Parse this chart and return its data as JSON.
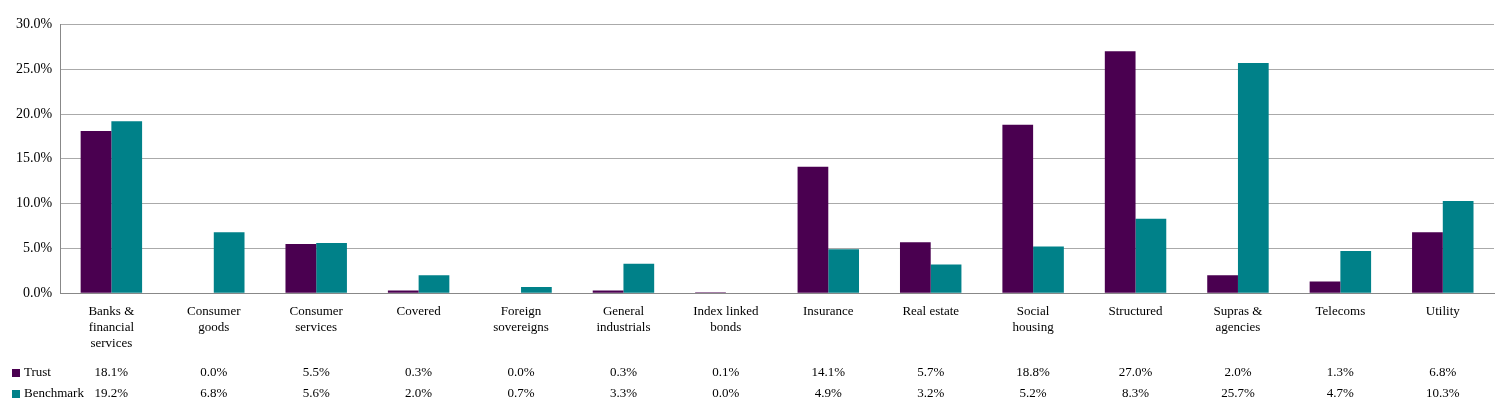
{
  "chart_data": {
    "type": "bar",
    "categories": [
      "Banks & financial services",
      "Consumer goods",
      "Consumer services",
      "Covered",
      "Foreign sovereigns",
      "General industrials",
      "Index linked bonds",
      "Insurance",
      "Real estate",
      "Social housing",
      "Structured",
      "Supras & agencies",
      "Telecoms",
      "Utility"
    ],
    "series": [
      {
        "name": "Trust",
        "color": "#4a0050",
        "values": [
          18.1,
          0.0,
          5.5,
          0.3,
          0.0,
          0.3,
          0.1,
          14.1,
          5.7,
          18.8,
          27.0,
          2.0,
          1.3,
          6.8
        ],
        "value_labels": [
          "18.1%",
          "0.0%",
          "5.5%",
          "0.3%",
          "0.0%",
          "0.3%",
          "0.1%",
          "14.1%",
          "5.7%",
          "18.8%",
          "27.0%",
          "2.0%",
          "1.3%",
          "6.8%"
        ]
      },
      {
        "name": "Benchmark",
        "color": "#008189",
        "values": [
          19.2,
          6.8,
          5.6,
          2.0,
          0.7,
          3.3,
          0.0,
          4.9,
          3.2,
          5.2,
          8.3,
          25.7,
          4.7,
          10.3
        ],
        "value_labels": [
          "19.2%",
          "6.8%",
          "5.6%",
          "2.0%",
          "0.7%",
          "3.3%",
          "0.0%",
          "4.9%",
          "3.2%",
          "5.2%",
          "8.3%",
          "25.7%",
          "4.7%",
          "10.3%"
        ]
      }
    ],
    "ylim": [
      0,
      30
    ],
    "yticks": [
      {
        "value": 0,
        "label": "0.0%"
      },
      {
        "value": 5,
        "label": "5.0%"
      },
      {
        "value": 10,
        "label": "10.0%"
      },
      {
        "value": 15,
        "label": "15.0%"
      },
      {
        "value": 20,
        "label": "20.0%"
      },
      {
        "value": 25,
        "label": "25.0%"
      },
      {
        "value": 30,
        "label": "30.0%"
      }
    ],
    "grid": "y",
    "legend": "bottom"
  }
}
